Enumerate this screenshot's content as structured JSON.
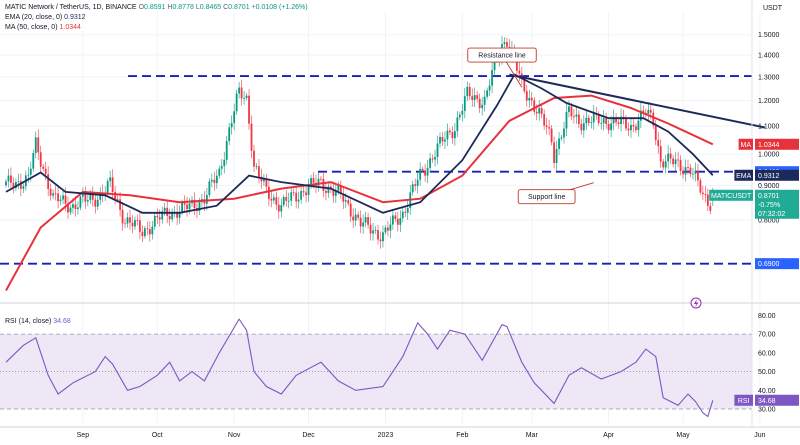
{
  "header": {
    "symbol_title": "MATIC Network / TetherUS, 1D, BINANCE",
    "ohlc": {
      "o_label": "O",
      "o_value": "0.8591",
      "h_label": "H",
      "h_value": "0.8778",
      "l_label": "L",
      "l_value": "0.8465",
      "c_label": "C",
      "c_value": "0.8701",
      "change": "+0.0108 (+1.26%)"
    },
    "ema_label": "EMA (20, close, 0)",
    "ema_value": "0.9312",
    "ma_label": "MA (50, close, 0)",
    "ma_value": "1.0344",
    "rsi_label": "RSI (14, close)",
    "rsi_value": "34.68"
  },
  "axis": {
    "currency_label": "USDT"
  },
  "colors": {
    "up": "#089981",
    "down": "#f23645",
    "ema": "#1b2a5a",
    "ma": "#e8323b",
    "rsi": "#7e57c2",
    "rsi_band": "#ede7f6",
    "hline": "#1a1fb8",
    "badge_blue": "#2962ff"
  },
  "chart_data": [
    {
      "type": "candlestick",
      "title": "MATIC Network / TetherUS, 1D, BINANCE",
      "y_scale": "log",
      "ylim": [
        0.61,
        1.62
      ],
      "y_ticks": [
        1.5,
        1.4,
        1.3,
        1.2,
        1.1,
        1.0,
        0.9,
        0.8
      ],
      "y_tick_labels": [
        "1.5000",
        "1.4000",
        "1.3000",
        "1.2000",
        "1.1000",
        "1.0000",
        "0.9000",
        "0.8000"
      ],
      "x_ticks": [
        "Sep",
        "Oct",
        "Nov",
        "Dec",
        "2023",
        "Feb",
        "Mar",
        "Apr",
        "May",
        "Jun"
      ],
      "start_date": "2022-08-01",
      "ohlc_anchors": [
        [
          "2022-08-01",
          0.9
        ],
        [
          "2022-08-10",
          0.92
        ],
        [
          "2022-08-13",
          1.03
        ],
        [
          "2022-08-20",
          0.86
        ],
        [
          "2022-08-28",
          0.84
        ],
        [
          "2022-09-08",
          0.87
        ],
        [
          "2022-09-12",
          0.9
        ],
        [
          "2022-09-18",
          0.8
        ],
        [
          "2022-09-25",
          0.77
        ],
        [
          "2022-10-05",
          0.82
        ],
        [
          "2022-10-12",
          0.83
        ],
        [
          "2022-10-20",
          0.86
        ],
        [
          "2022-10-26",
          0.94
        ],
        [
          "2022-11-03",
          1.23
        ],
        [
          "2022-11-06",
          1.21
        ],
        [
          "2022-11-09",
          0.96
        ],
        [
          "2022-11-14",
          0.88
        ],
        [
          "2022-11-20",
          0.84
        ],
        [
          "2022-11-30",
          0.89
        ],
        [
          "2022-12-06",
          0.91
        ],
        [
          "2022-12-15",
          0.86
        ],
        [
          "2022-12-22",
          0.79
        ],
        [
          "2022-12-31",
          0.76
        ],
        [
          "2023-01-08",
          0.82
        ],
        [
          "2023-01-15",
          0.93
        ],
        [
          "2023-01-22",
          1.02
        ],
        [
          "2023-01-29",
          1.1
        ],
        [
          "2023-02-03",
          1.22
        ],
        [
          "2023-02-10",
          1.2
        ],
        [
          "2023-02-17",
          1.45
        ],
        [
          "2023-02-19",
          1.48
        ],
        [
          "2023-02-25",
          1.26
        ],
        [
          "2023-03-01",
          1.2
        ],
        [
          "2023-03-09",
          1.05
        ],
        [
          "2023-03-10",
          1.0
        ],
        [
          "2023-03-16",
          1.15
        ],
        [
          "2023-03-20",
          1.12
        ],
        [
          "2023-04-01",
          1.12
        ],
        [
          "2023-04-10",
          1.1
        ],
        [
          "2023-04-16",
          1.15
        ],
        [
          "2023-04-19",
          1.12
        ],
        [
          "2023-04-22",
          0.98
        ],
        [
          "2023-04-28",
          0.97
        ],
        [
          "2023-05-04",
          0.95
        ],
        [
          "2023-05-09",
          0.87
        ],
        [
          "2023-05-12",
          0.85
        ],
        [
          "2023-05-13",
          0.87
        ]
      ],
      "ema20_points": [
        [
          "2022-08-01",
          0.88
        ],
        [
          "2022-08-15",
          0.94
        ],
        [
          "2022-08-25",
          0.88
        ],
        [
          "2022-09-10",
          0.87
        ],
        [
          "2022-09-25",
          0.82
        ],
        [
          "2022-10-10",
          0.82
        ],
        [
          "2022-10-25",
          0.84
        ],
        [
          "2022-11-07",
          0.93
        ],
        [
          "2022-11-20",
          0.91
        ],
        [
          "2022-12-10",
          0.89
        ],
        [
          "2022-12-31",
          0.82
        ],
        [
          "2023-01-15",
          0.85
        ],
        [
          "2023-02-01",
          0.98
        ],
        [
          "2023-02-15",
          1.18
        ],
        [
          "2023-02-22",
          1.31
        ],
        [
          "2023-03-05",
          1.25
        ],
        [
          "2023-03-15",
          1.19
        ],
        [
          "2023-04-01",
          1.13
        ],
        [
          "2023-04-15",
          1.13
        ],
        [
          "2023-04-25",
          1.08
        ],
        [
          "2023-05-05",
          1.0
        ],
        [
          "2023-05-13",
          0.9312
        ]
      ],
      "ma50_points": [
        [
          "2022-08-01",
          0.63
        ],
        [
          "2022-08-15",
          0.78
        ],
        [
          "2022-09-01",
          0.88
        ],
        [
          "2022-09-20",
          0.87
        ],
        [
          "2022-10-10",
          0.85
        ],
        [
          "2022-11-01",
          0.86
        ],
        [
          "2022-11-20",
          0.89
        ],
        [
          "2022-12-10",
          0.91
        ],
        [
          "2022-12-31",
          0.85
        ],
        [
          "2023-01-15",
          0.86
        ],
        [
          "2023-02-01",
          0.93
        ],
        [
          "2023-02-20",
          1.12
        ],
        [
          "2023-03-10",
          1.21
        ],
        [
          "2023-03-25",
          1.22
        ],
        [
          "2023-04-10",
          1.17
        ],
        [
          "2023-04-25",
          1.11
        ],
        [
          "2023-05-13",
          1.0344
        ]
      ],
      "horizontal_levels": [
        {
          "name": "upper",
          "value": 1.3036,
          "label": "1.3036"
        },
        {
          "name": "middle",
          "value": 0.9426,
          "label": "0.9426"
        },
        {
          "name": "lower",
          "value": 0.69,
          "label": "0.6900"
        }
      ],
      "resistance_line": {
        "from": [
          "2023-02-20",
          1.31
        ],
        "to": [
          "2023-06-03",
          1.095
        ]
      },
      "annotations": [
        {
          "name": "resistance",
          "text": "Resistance line",
          "at_date": "2023-02-17",
          "at_value": 1.4,
          "pointer_date": "2023-02-25",
          "pointer_value": 1.255
        },
        {
          "name": "support",
          "text": "Support line",
          "at_date": "2023-03-07",
          "at_value": 0.866,
          "pointer_date": "2023-03-26",
          "pointer_value": 0.908
        }
      ],
      "price_badges": [
        {
          "name": "ma",
          "tag": "MA",
          "value_text": "1.0344",
          "value": 1.0344
        },
        {
          "name": "upper-level",
          "tag": "",
          "value_text": "0.9426",
          "value": 0.9426
        },
        {
          "name": "ema",
          "tag": "EMA",
          "value_text": "0.9312",
          "value": 0.9312
        },
        {
          "name": "last-price",
          "tag": "MATICUSDT",
          "value_text": "0.8701",
          "extra": [
            "-0.75%",
            "07:32:02"
          ],
          "value": 0.8701
        },
        {
          "name": "lower-level",
          "tag": "",
          "value_text": "0.6900",
          "value": 0.69
        }
      ]
    },
    {
      "type": "line",
      "title": "RSI (14, close)",
      "ylim": [
        22,
        85
      ],
      "y_ticks": [
        80,
        70,
        60,
        50,
        40,
        30
      ],
      "y_tick_labels": [
        "80.00",
        "70.00",
        "60.00",
        "50.00",
        "40.00",
        "30.00"
      ],
      "levels": [
        70,
        50,
        30
      ],
      "points": [
        [
          "2022-08-01",
          55
        ],
        [
          "2022-08-08",
          64
        ],
        [
          "2022-08-13",
          68
        ],
        [
          "2022-08-18",
          48
        ],
        [
          "2022-08-22",
          38
        ],
        [
          "2022-08-28",
          44
        ],
        [
          "2022-09-06",
          50
        ],
        [
          "2022-09-10",
          58
        ],
        [
          "2022-09-13",
          54
        ],
        [
          "2022-09-19",
          40
        ],
        [
          "2022-09-24",
          42
        ],
        [
          "2022-10-01",
          48
        ],
        [
          "2022-10-06",
          55
        ],
        [
          "2022-10-10",
          45
        ],
        [
          "2022-10-15",
          50
        ],
        [
          "2022-10-20",
          45
        ],
        [
          "2022-10-26",
          60
        ],
        [
          "2022-11-03",
          78
        ],
        [
          "2022-11-06",
          72
        ],
        [
          "2022-11-09",
          50
        ],
        [
          "2022-11-14",
          42
        ],
        [
          "2022-11-20",
          38
        ],
        [
          "2022-11-26",
          48
        ],
        [
          "2022-12-06",
          55
        ],
        [
          "2022-12-13",
          45
        ],
        [
          "2022-12-20",
          40
        ],
        [
          "2022-12-31",
          42
        ],
        [
          "2023-01-08",
          58
        ],
        [
          "2023-01-14",
          76
        ],
        [
          "2023-01-18",
          70
        ],
        [
          "2023-01-22",
          62
        ],
        [
          "2023-01-27",
          72
        ],
        [
          "2023-02-02",
          70
        ],
        [
          "2023-02-09",
          56
        ],
        [
          "2023-02-17",
          75
        ],
        [
          "2023-02-19",
          74
        ],
        [
          "2023-02-25",
          55
        ],
        [
          "2023-03-02",
          44
        ],
        [
          "2023-03-10",
          33
        ],
        [
          "2023-03-16",
          48
        ],
        [
          "2023-03-21",
          52
        ],
        [
          "2023-03-29",
          46
        ],
        [
          "2023-04-06",
          50
        ],
        [
          "2023-04-12",
          55
        ],
        [
          "2023-04-16",
          62
        ],
        [
          "2023-04-20",
          58
        ],
        [
          "2023-04-23",
          36
        ],
        [
          "2023-04-29",
          32
        ],
        [
          "2023-05-03",
          38
        ],
        [
          "2023-05-06",
          34
        ],
        [
          "2023-05-09",
          28
        ],
        [
          "2023-05-11",
          26
        ],
        [
          "2023-05-13",
          34.68
        ]
      ],
      "value_badge": {
        "tag": "RSI",
        "value_text": "34.68",
        "value": 34.68
      }
    }
  ]
}
